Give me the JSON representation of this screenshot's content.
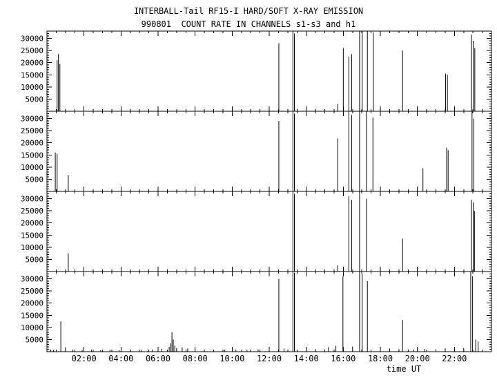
{
  "chart_data": {
    "type": "line",
    "title": "INTERBALL-Tail RF15-I HARD/SOFT X-RAY EMISSION",
    "subtitle": "990801  COUNT RATE IN CHANNELS s1-s3 and h1",
    "xlabel": "time UT",
    "grid": false,
    "x_range_hours": [
      0,
      24
    ],
    "x_major_ticks": [
      2,
      4,
      6,
      8,
      10,
      12,
      14,
      16,
      18,
      20,
      22
    ],
    "x_tick_labels": [
      "02:00",
      "04:00",
      "06:00",
      "08:00",
      "10:00",
      "12:00",
      "14:00",
      "16:00",
      "18:00",
      "20:00",
      "22:00"
    ],
    "x_minor_step_hours": 0.5,
    "ylim": [
      0,
      33000
    ],
    "y_major_ticks": [
      5000,
      10000,
      15000,
      20000,
      25000,
      30000
    ],
    "y_minor_step": 1000,
    "axis_color": "#000000",
    "spike_color": "#000000",
    "panels": [
      {
        "name": "s1",
        "spikes": [
          [
            0.55,
            21000
          ],
          [
            0.62,
            23500
          ],
          [
            0.7,
            19500
          ],
          [
            12.52,
            28000
          ],
          [
            13.28,
            33000
          ],
          [
            13.36,
            32000
          ],
          [
            15.7,
            3000
          ],
          [
            16.0,
            26000
          ],
          [
            16.3,
            22500
          ],
          [
            16.45,
            23500
          ],
          [
            16.88,
            33000
          ],
          [
            17.02,
            33000
          ],
          [
            17.3,
            33000
          ],
          [
            17.62,
            32500
          ],
          [
            19.2,
            25000
          ],
          [
            21.52,
            15500
          ],
          [
            21.62,
            15000
          ],
          [
            22.92,
            31500
          ],
          [
            23.02,
            29000
          ],
          [
            23.1,
            26000
          ]
        ]
      },
      {
        "name": "s2",
        "spikes": [
          [
            0.45,
            16000
          ],
          [
            0.55,
            15500
          ],
          [
            1.15,
            6800
          ],
          [
            12.52,
            29000
          ],
          [
            13.28,
            33000
          ],
          [
            13.36,
            32000
          ],
          [
            15.7,
            21800
          ],
          [
            16.3,
            33000
          ],
          [
            16.45,
            31500
          ],
          [
            16.88,
            33000
          ],
          [
            17.25,
            33000
          ],
          [
            17.6,
            30500
          ],
          [
            20.3,
            9500
          ],
          [
            21.58,
            18000
          ],
          [
            21.66,
            17000
          ],
          [
            22.95,
            33000
          ],
          [
            23.05,
            30000
          ]
        ]
      },
      {
        "name": "s3",
        "spikes": [
          [
            1.15,
            7500
          ],
          [
            13.28,
            33000
          ],
          [
            13.36,
            32000
          ],
          [
            15.7,
            2500
          ],
          [
            16.3,
            31000
          ],
          [
            16.45,
            29500
          ],
          [
            16.88,
            33000
          ],
          [
            17.25,
            30000
          ],
          [
            19.2,
            13500
          ],
          [
            22.92,
            29500
          ],
          [
            23.02,
            28500
          ],
          [
            23.08,
            25000
          ]
        ]
      },
      {
        "name": "h1",
        "spikes": [
          [
            0.2,
            900
          ],
          [
            0.35,
            700
          ],
          [
            0.75,
            12500
          ],
          [
            1.0,
            1800
          ],
          [
            1.4,
            900
          ],
          [
            1.9,
            700
          ],
          [
            2.4,
            800
          ],
          [
            2.9,
            600
          ],
          [
            3.4,
            700
          ],
          [
            3.9,
            600
          ],
          [
            4.5,
            800
          ],
          [
            5.1,
            700
          ],
          [
            5.7,
            900
          ],
          [
            6.2,
            1200
          ],
          [
            6.6,
            2000
          ],
          [
            6.68,
            3500
          ],
          [
            6.75,
            8000
          ],
          [
            6.82,
            5000
          ],
          [
            6.9,
            2500
          ],
          [
            7.0,
            1500
          ],
          [
            7.3,
            1700
          ],
          [
            7.6,
            1300
          ],
          [
            8.0,
            1000
          ],
          [
            8.5,
            800
          ],
          [
            9.0,
            700
          ],
          [
            9.6,
            800
          ],
          [
            10.2,
            900
          ],
          [
            10.8,
            800
          ],
          [
            11.4,
            900
          ],
          [
            12.0,
            1100
          ],
          [
            12.52,
            30000
          ],
          [
            12.8,
            1300
          ],
          [
            13.28,
            33000
          ],
          [
            13.36,
            32500
          ],
          [
            14.0,
            1600
          ],
          [
            14.5,
            1100
          ],
          [
            15.2,
            1900
          ],
          [
            15.6,
            2400
          ],
          [
            15.98,
            31000
          ],
          [
            16.5,
            2100
          ],
          [
            16.88,
            33000
          ],
          [
            17.02,
            32000
          ],
          [
            17.3,
            29000
          ],
          [
            18.0,
            1800
          ],
          [
            18.5,
            1300
          ],
          [
            19.0,
            1000
          ],
          [
            19.2,
            13000
          ],
          [
            19.8,
            900
          ],
          [
            20.4,
            1100
          ],
          [
            21.0,
            1000
          ],
          [
            21.5,
            1400
          ],
          [
            22.0,
            1200
          ],
          [
            22.5,
            1500
          ],
          [
            22.88,
            33000
          ],
          [
            22.98,
            31000
          ],
          [
            23.15,
            5000
          ],
          [
            23.28,
            4200
          ]
        ]
      }
    ]
  }
}
